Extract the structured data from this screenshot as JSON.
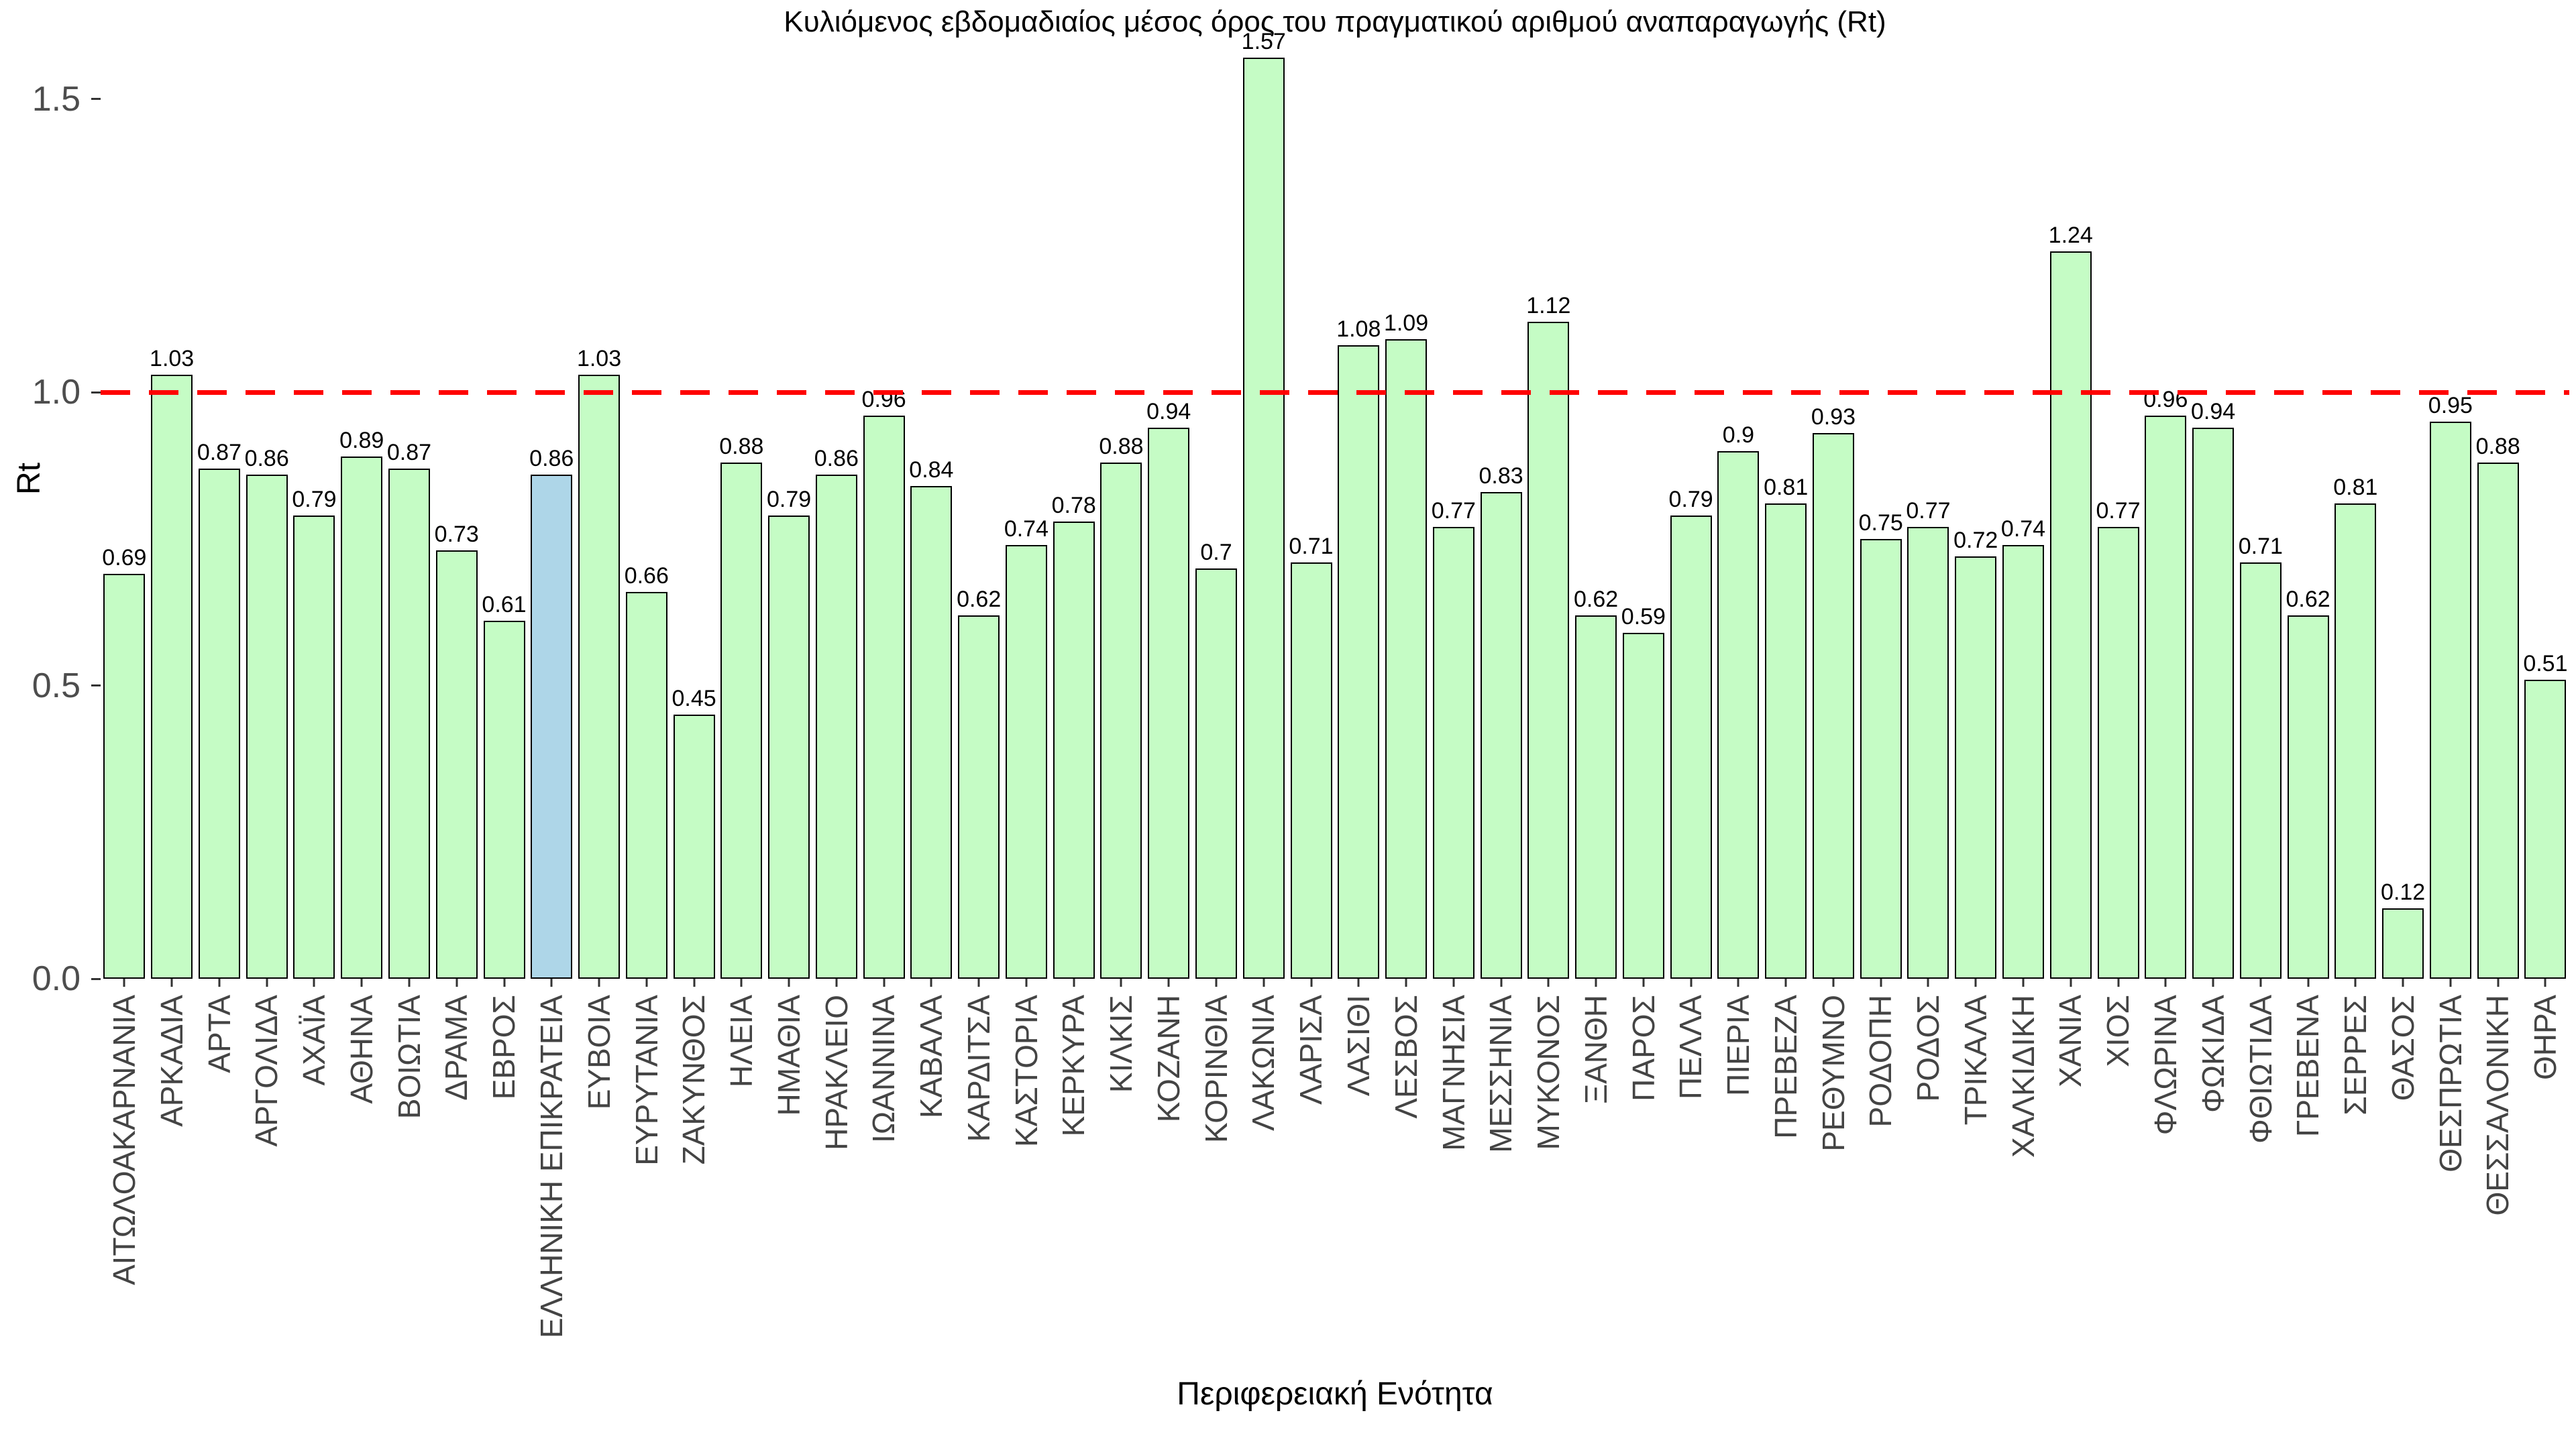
{
  "chart_data": {
    "type": "bar",
    "title": "Κυλιόμενος εβδομαδιαίος μέσος όρος του πραγματικού αριθμού αναπαραγωγής (Rt)",
    "xlabel": "Περιφερειακή Ενότητα",
    "ylabel": "Rt",
    "categories": [
      "ΑΙΤΩΛΟΑΚΑΡΝΑΝΙΑ",
      "ΑΡΚΑΔΙΑ",
      "ΑΡΤΑ",
      "ΑΡΓΟΛΙΔΑ",
      "ΑΧΑΪΑ",
      "ΑΘΗΝΑ",
      "ΒΟΙΩΤΙΑ",
      "ΔΡΑΜΑ",
      "ΕΒΡΟΣ",
      "ΕΛΛΗΝΙΚΗ ΕΠΙΚΡΑΤΕΙΑ",
      "ΕΥΒΟΙΑ",
      "ΕΥΡΥΤΑΝΙΑ",
      "ΖΑΚΥΝΘΟΣ",
      "ΗΛΕΙΑ",
      "ΗΜΑΘΙΑ",
      "ΗΡΑΚΛΕΙΟ",
      "ΙΩΑΝΝΙΝΑ",
      "ΚΑΒΑΛΑ",
      "ΚΑΡΔΙΤΣΑ",
      "ΚΑΣΤΟΡΙΑ",
      "ΚΕΡΚΥΡΑ",
      "ΚΙΛΚΙΣ",
      "ΚΟΖΑΝΗ",
      "ΚΟΡΙΝΘΙΑ",
      "ΛΑΚΩΝΙΑ",
      "ΛΑΡΙΣΑ",
      "ΛΑΣΙΘΙ",
      "ΛΕΣΒΟΣ",
      "ΜΑΓΝΗΣΙΑ",
      "ΜΕΣΣΗΝΙΑ",
      "ΜΥΚΟΝΟΣ",
      "ΞΑΝΘΗ",
      "ΠΑΡΟΣ",
      "ΠΕΛΛΑ",
      "ΠΙΕΡΙΑ",
      "ΠΡΕΒΕΖΑ",
      "ΡΕΘΥΜΝΟ",
      "ΡΟΔΟΠΗ",
      "ΡΟΔΟΣ",
      "ΤΡΙΚΑΛΑ",
      "ΧΑΛΚΙΔΙΚΗ",
      "ΧΑΝΙΑ",
      "ΧΙΟΣ",
      "ΦΛΩΡΙΝΑ",
      "ΦΩΚΙΔΑ",
      "ΦΘΙΩΤΙΔΑ",
      "ΓΡΕΒΕΝΑ",
      "ΣΕΡΡΕΣ",
      "ΘΑΣΟΣ",
      "ΘΕΣΠΡΩΤΙΑ",
      "ΘΕΣΣΑΛΟΝΙΚΗ",
      "ΘΗΡΑ"
    ],
    "values": [
      0.69,
      1.03,
      0.87,
      0.86,
      0.79,
      0.89,
      0.87,
      0.73,
      0.61,
      0.86,
      1.03,
      0.66,
      0.45,
      0.88,
      0.79,
      0.86,
      0.96,
      0.84,
      0.62,
      0.74,
      0.78,
      0.88,
      0.94,
      0.7,
      1.57,
      0.71,
      1.08,
      1.09,
      0.77,
      0.83,
      1.12,
      0.62,
      0.59,
      0.79,
      0.9,
      0.81,
      0.93,
      0.75,
      0.77,
      0.72,
      0.74,
      1.24,
      0.77,
      0.96,
      0.94,
      0.71,
      0.62,
      0.81,
      0.12,
      0.95,
      0.88,
      0.51
    ],
    "value_labels": [
      "0.69",
      "1.03",
      "0.87",
      "0.86",
      "0.79",
      "0.89",
      "0.87",
      "0.73",
      "0.61",
      "0.86",
      "1.03",
      "0.66",
      "0.45",
      "0.88",
      "0.79",
      "0.86",
      "0.96",
      "0.84",
      "0.62",
      "0.74",
      "0.78",
      "0.88",
      "0.94",
      "0.7",
      "1.57",
      "0.71",
      "1.08",
      "1.09",
      "0.77",
      "0.83",
      "1.12",
      "0.62",
      "0.59",
      "0.79",
      "0.9",
      "0.81",
      "0.93",
      "0.75",
      "0.77",
      "0.72",
      "0.74",
      "1.24",
      "0.77",
      "0.96",
      "0.94",
      "0.71",
      "0.62",
      "0.81",
      "0.12",
      "0.95",
      "0.88",
      "0.51"
    ],
    "highlight_category": "ΕΛΛΗΝΙΚΗ ΕΠΙΚΡΑΤΕΙΑ",
    "highlight_index": 9,
    "bar_color": "#c5fcc5",
    "highlight_color": "#aed6e8",
    "bar_border_color": "#000000",
    "reference_line": {
      "value": 1.0,
      "color": "#ff0000",
      "style": "dashed"
    },
    "yticks": {
      "labels": [
        "0.0",
        "0.5",
        "1.0",
        "1.5"
      ],
      "values": [
        0,
        0.5,
        1.0,
        1.5
      ]
    },
    "ylim": [
      0,
      1.59
    ],
    "grid": false,
    "legend": null
  }
}
